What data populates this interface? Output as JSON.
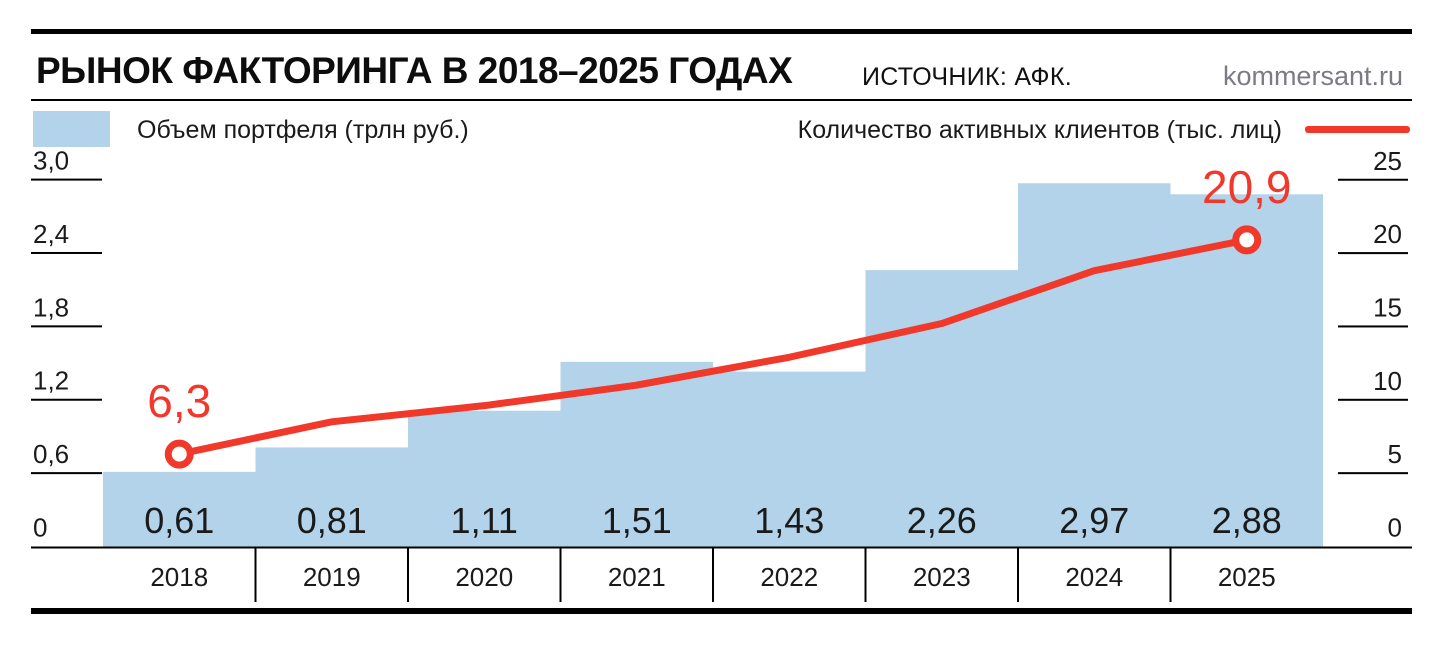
{
  "header": {
    "title": "РЫНОК ФАКТОРИНГА В 2018–2025 ГОДАХ",
    "source": "ИСТОЧНИК: АФК.",
    "site": "kommersant.ru"
  },
  "legend": {
    "bars_label": "Объем портфеля (трлн руб.)",
    "line_label": "Количество активных клиентов (тыс. лиц)"
  },
  "colors": {
    "bar": "#b2d3e9",
    "line": "#f1392b",
    "text": "#1a1a1a",
    "site_text": "#7b7b83",
    "rule": "#000000"
  },
  "chart_data": {
    "type": "bar+line",
    "title": "РЫНОК ФАКТОРИНГА В 2018–2025 ГОДАХ",
    "source": "ИСТОЧНИК: АФК.",
    "categories": [
      "2018",
      "2019",
      "2020",
      "2021",
      "2022",
      "2023",
      "2024",
      "2025"
    ],
    "series": [
      {
        "name": "Объем портфеля (трлн руб.)",
        "type": "bar",
        "axis": "left",
        "values": [
          0.61,
          0.81,
          1.11,
          1.51,
          1.43,
          2.26,
          2.97,
          2.88
        ],
        "value_labels": [
          "0,61",
          "0,81",
          "1,11",
          "1,51",
          "1,43",
          "2,26",
          "2,97",
          "2,88"
        ]
      },
      {
        "name": "Количество активных клиентов (тыс. лиц)",
        "type": "line",
        "axis": "right",
        "values": [
          6.3,
          8.5,
          9.6,
          11.0,
          12.9,
          15.2,
          18.8,
          20.9
        ],
        "labeled_points": [
          {
            "index": 0,
            "label": "6,3"
          },
          {
            "index": 7,
            "label": "20,9"
          }
        ]
      }
    ],
    "left_axis": {
      "range": [
        0,
        3.0
      ],
      "tick_values": [
        3.0,
        2.4,
        1.8,
        1.2,
        0.6,
        0
      ],
      "tick_labels": [
        "3,0",
        "2,4",
        "1,8",
        "1,2",
        "0,6",
        "0"
      ]
    },
    "right_axis": {
      "range": [
        0,
        25
      ],
      "tick_values": [
        25,
        20,
        15,
        10,
        5,
        0
      ],
      "tick_labels": [
        "25",
        "20",
        "15",
        "10",
        "5",
        "0"
      ]
    },
    "grid": false,
    "legend_position": "top"
  }
}
